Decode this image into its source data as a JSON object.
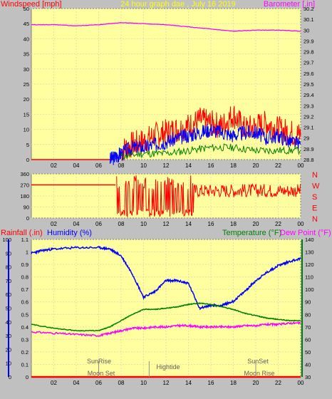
{
  "top_panel": {
    "title": "24 hour graph dae , July 16 2019",
    "left_label": "Windspeed [mph]",
    "right_label": "Barometer [.in]",
    "left_ticks": [
      "0",
      "5",
      "10",
      "15",
      "20",
      "25",
      "30",
      "35",
      "40",
      "45",
      "50"
    ],
    "right_ticks": [
      "28.8",
      "28.9",
      "29",
      "29.1",
      "29.2",
      "29.3",
      "29.4",
      "29.5",
      "29.6",
      "29.7",
      "29.8",
      "29.9",
      "30",
      "30.1",
      "30.2"
    ],
    "x_ticks": [
      "02",
      "04",
      "06",
      "08",
      "10",
      "12",
      "14",
      "16",
      "18",
      "20",
      "22",
      "00"
    ]
  },
  "mid_panel": {
    "left_ticks": [
      "0",
      "90",
      "180",
      "270",
      "360"
    ],
    "right_labels": [
      "N",
      "W",
      "S",
      "E",
      "N"
    ],
    "x_ticks": [
      "02",
      "04",
      "06",
      "08",
      "10",
      "12",
      "14",
      "16",
      "18",
      "20",
      "22",
      "00"
    ]
  },
  "bottom_panel": {
    "rain_label": "Rainfall (.in)",
    "humidity_label": "Humidity (%)",
    "temp_label": "Temperature (°F)",
    "dew_label": "Dew Point (°F)",
    "rain_ticks": [
      "0",
      "0.1",
      "0.2",
      "0.3",
      "0.4",
      "0.5",
      "0.6",
      "0.7",
      "0.8",
      "0.9",
      "1",
      "1.1"
    ],
    "humidity_ticks": [
      "0",
      "10",
      "20",
      "30",
      "40",
      "50",
      "60",
      "70",
      "80",
      "90",
      "100"
    ],
    "temp_ticks": [
      "30",
      "40",
      "50",
      "60",
      "70",
      "80",
      "90",
      "100",
      "110",
      "120",
      "130",
      "140"
    ],
    "x_ticks": [
      "02",
      "04",
      "06",
      "08",
      "10",
      "12",
      "14",
      "16",
      "18",
      "20",
      "22",
      "00"
    ],
    "annotations": {
      "sunrise": "SunRise",
      "moonset": "Moon Set",
      "hightide": "Hightide",
      "sunset": "SunSet",
      "moonrise": "Moon Rise"
    }
  },
  "colors": {
    "plot_bg": "#ffffa0",
    "panel_bg": "#c0c0c0",
    "wind": "#ff0000",
    "gust_avg": "#0000ff",
    "wind_avg": "#008000",
    "barometer": "#ff00ff",
    "humidity": "#0000ff",
    "temperature": "#008000",
    "dewpoint": "#ff00ff",
    "rain": "#ff0000",
    "direction": "#ff0000"
  },
  "chart_data": [
    {
      "type": "line",
      "panel": "wind-barometer",
      "x_unit": "hour",
      "xlim": [
        0,
        24
      ],
      "ylim_left": [
        0,
        50
      ],
      "ylim_right": [
        28.8,
        30.2
      ],
      "series": [
        {
          "name": "Windspeed",
          "axis": "left",
          "x": [
            0,
            2,
            4,
            6,
            7,
            7.5,
            8,
            9,
            10,
            11,
            12,
            13,
            14,
            15,
            16,
            17,
            18,
            19,
            20,
            21,
            22,
            23,
            24
          ],
          "y": [
            0,
            0,
            0,
            0,
            0,
            1,
            2,
            4,
            4,
            5,
            6,
            7,
            8,
            9,
            10,
            9,
            8,
            9,
            9,
            7,
            8,
            6,
            5
          ]
        },
        {
          "name": "Windspeed peak",
          "axis": "left",
          "x": [
            8,
            9,
            10,
            11,
            12,
            13,
            14,
            15,
            16,
            17,
            18,
            19,
            20,
            21,
            22,
            23,
            24
          ],
          "y": [
            3,
            5,
            6,
            8,
            9,
            10,
            11,
            13,
            12,
            11,
            15,
            10,
            11,
            12,
            10,
            9,
            8
          ]
        },
        {
          "name": "Average windspeed",
          "axis": "left",
          "x": [
            8,
            10,
            12,
            14,
            16,
            18,
            20,
            22,
            24
          ],
          "y": [
            1,
            2,
            2,
            3,
            4,
            4,
            3,
            3,
            3
          ]
        },
        {
          "name": "Barometer",
          "axis": "right",
          "x": [
            0,
            2,
            4,
            6,
            8,
            10,
            12,
            14,
            16,
            18,
            20,
            22,
            24
          ],
          "y": [
            30.05,
            30.05,
            30.04,
            30.05,
            30.07,
            30.06,
            30.05,
            30.03,
            30.01,
            29.99,
            30.0,
            30.0,
            29.99
          ]
        }
      ]
    },
    {
      "type": "line",
      "panel": "wind-direction",
      "x_unit": "hour",
      "xlim": [
        0,
        24
      ],
      "ylim": [
        0,
        360
      ],
      "series": [
        {
          "name": "Wind direction",
          "x": [
            0,
            2,
            4,
            6,
            7.5,
            8,
            9,
            10,
            11,
            12,
            13,
            14,
            15,
            16,
            17,
            18,
            19,
            20,
            21,
            22,
            23,
            24
          ],
          "y": [
            270,
            270,
            270,
            270,
            270,
            300,
            330,
            200,
            150,
            250,
            180,
            220,
            240,
            230,
            220,
            210,
            230,
            220,
            210,
            220,
            215,
            220
          ]
        }
      ]
    },
    {
      "type": "line",
      "panel": "temp-humidity-rain",
      "x_unit": "hour",
      "xlim": [
        0,
        24
      ],
      "ylim_rain": [
        0,
        1.1
      ],
      "ylim_humidity": [
        0,
        100
      ],
      "ylim_temp": [
        30,
        140
      ],
      "series": [
        {
          "name": "Humidity",
          "axis": "humidity",
          "x": [
            0,
            1,
            2,
            4,
            6,
            7,
            8,
            9,
            10,
            11,
            12,
            13,
            14,
            15,
            16,
            17,
            18,
            19,
            20,
            21,
            22,
            23,
            24
          ],
          "y": [
            90,
            92,
            93,
            94,
            94,
            93,
            88,
            75,
            58,
            62,
            70,
            70,
            68,
            50,
            52,
            52,
            55,
            62,
            70,
            76,
            81,
            84,
            86
          ]
        },
        {
          "name": "Temperature",
          "axis": "temp",
          "x": [
            0,
            2,
            4,
            6,
            7,
            8,
            9,
            10,
            11,
            12,
            13,
            14,
            15,
            16,
            17,
            18,
            19,
            20,
            21,
            22,
            23,
            24
          ],
          "y": [
            72,
            69,
            67,
            67,
            70,
            75,
            80,
            84,
            84,
            85,
            86,
            88,
            89,
            88,
            86,
            84,
            81,
            79,
            77,
            76,
            75,
            75
          ]
        },
        {
          "name": "Dew Point",
          "axis": "temp",
          "x": [
            0,
            2,
            4,
            6,
            7,
            8,
            9,
            10,
            11,
            12,
            13,
            14,
            15,
            16,
            17,
            18,
            19,
            20,
            21,
            22,
            23,
            24
          ],
          "y": [
            66,
            65,
            64,
            63,
            65,
            67,
            69,
            69,
            70,
            70,
            71,
            71,
            70,
            70,
            70,
            70,
            71,
            71,
            72,
            72,
            73,
            73
          ]
        },
        {
          "name": "Rainfall",
          "axis": "rain",
          "x": [
            0,
            24
          ],
          "y": [
            0,
            0
          ]
        }
      ]
    }
  ]
}
